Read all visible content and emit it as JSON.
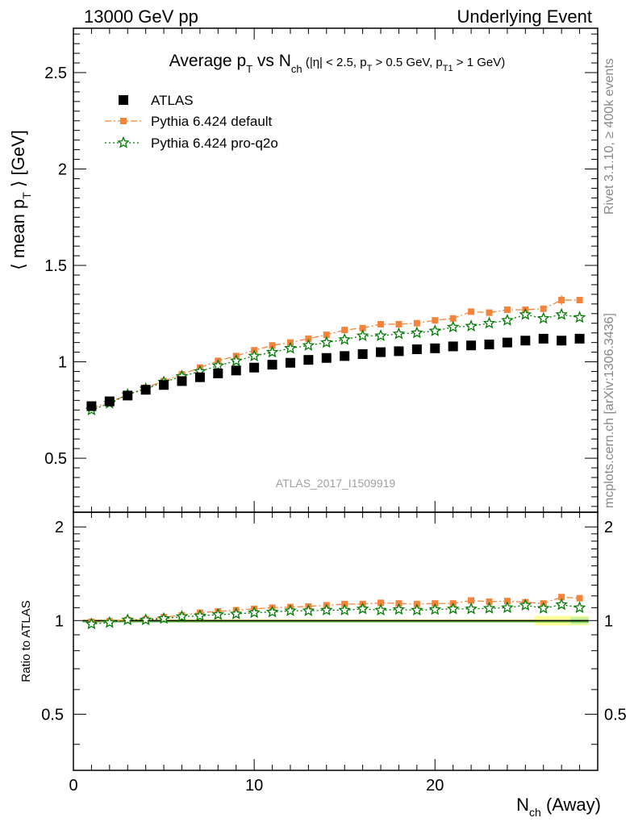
{
  "header": {
    "left": "13000 GeV pp",
    "right": "Underlying Event"
  },
  "side": {
    "rivet": "Rivet 3.1.10, ≥ 400k events",
    "mcplots": "mcplots.cern.ch [arXiv:1306.3436]"
  },
  "watermark": "ATLAS_2017_I1509919",
  "chart_data": {
    "type": "scatter",
    "title": "Average p_T vs N_ch (|η| < 2.5, p_T > 0.5 GeV, p_T1 > 1 GeV)",
    "xlabel": "N_ch (Away)",
    "ylabel": "⟨ mean p_T ⟩ [GeV]",
    "ratio_ylabel": "Ratio to ATLAS",
    "xlim": [
      0,
      29
    ],
    "ylim": [
      0.22,
      2.73
    ],
    "ratio_ylim": [
      0.33,
      2.23
    ],
    "xticks": [
      0,
      10,
      20
    ],
    "yticks": [
      0.5,
      1,
      1.5,
      2,
      2.5
    ],
    "ratio_yticks": [
      0.5,
      1,
      2
    ],
    "legend_position": "top-left",
    "x": [
      1,
      2,
      3,
      4,
      5,
      6,
      7,
      8,
      9,
      10,
      11,
      12,
      13,
      14,
      15,
      16,
      17,
      18,
      19,
      20,
      21,
      22,
      23,
      24,
      25,
      26,
      27,
      28
    ],
    "series": [
      {
        "name": "ATLAS",
        "color": "#000000",
        "marker": "square",
        "values": [
          0.77,
          0.795,
          0.825,
          0.855,
          0.88,
          0.9,
          0.92,
          0.94,
          0.955,
          0.97,
          0.985,
          0.995,
          1.01,
          1.02,
          1.03,
          1.04,
          1.05,
          1.055,
          1.065,
          1.07,
          1.08,
          1.085,
          1.09,
          1.1,
          1.11,
          1.12,
          1.11,
          1.12
        ]
      },
      {
        "name": "Pythia 6.424 default",
        "color": "#f4843c",
        "marker": "filled-square",
        "line": "dash-dot",
        "values": [
          0.76,
          0.79,
          0.83,
          0.865,
          0.9,
          0.935,
          0.97,
          1.005,
          1.03,
          1.06,
          1.085,
          1.1,
          1.12,
          1.14,
          1.165,
          1.175,
          1.195,
          1.195,
          1.2,
          1.215,
          1.225,
          1.26,
          1.255,
          1.27,
          1.27,
          1.275,
          1.32,
          1.32
        ]
      },
      {
        "name": "Pythia 6.424 pro-q2o",
        "color": "#007a00",
        "marker": "open-star",
        "line": "dotted",
        "values": [
          0.75,
          0.785,
          0.83,
          0.86,
          0.895,
          0.925,
          0.95,
          0.98,
          1.005,
          1.03,
          1.05,
          1.07,
          1.085,
          1.1,
          1.115,
          1.135,
          1.135,
          1.145,
          1.15,
          1.16,
          1.18,
          1.185,
          1.2,
          1.215,
          1.245,
          1.225,
          1.245,
          1.23
        ]
      }
    ],
    "ratio_series": [
      {
        "name": "Pythia 6.424 default",
        "values": [
          0.99,
          0.995,
          1.005,
          1.01,
          1.025,
          1.04,
          1.06,
          1.07,
          1.08,
          1.09,
          1.1,
          1.105,
          1.11,
          1.12,
          1.13,
          1.13,
          1.14,
          1.135,
          1.13,
          1.135,
          1.135,
          1.16,
          1.15,
          1.155,
          1.145,
          1.135,
          1.19,
          1.18
        ]
      },
      {
        "name": "Pythia 6.424 pro-q2o",
        "values": [
          0.975,
          0.985,
          1.005,
          1.005,
          1.015,
          1.03,
          1.035,
          1.045,
          1.05,
          1.06,
          1.065,
          1.075,
          1.075,
          1.08,
          1.08,
          1.09,
          1.08,
          1.085,
          1.08,
          1.085,
          1.09,
          1.09,
          1.095,
          1.1,
          1.12,
          1.095,
          1.125,
          1.1
        ]
      }
    ]
  }
}
